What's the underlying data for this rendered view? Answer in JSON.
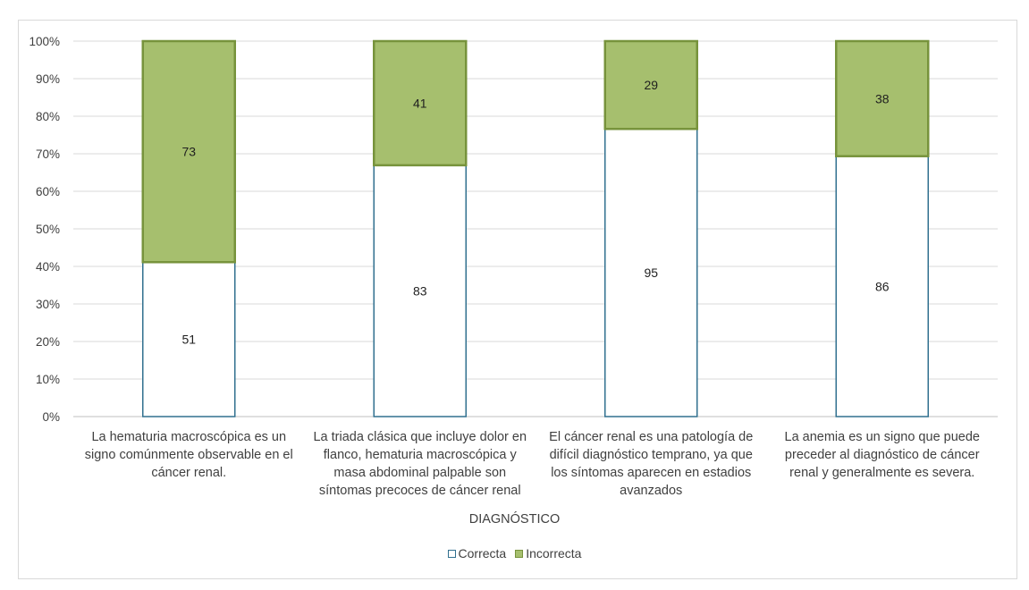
{
  "chart_data": {
    "type": "bar",
    "stacked": true,
    "normalized": true,
    "categories": [
      "La hematuria macroscópica es un signo comúnmente observable en el cáncer renal.",
      "La triada clásica que incluye dolor en flanco, hematuria macroscópica y masa abdominal palpable son síntomas precoces de cáncer renal",
      "El cáncer renal es una patología de difícil diagnóstico temprano, ya que los síntomas aparecen en estadios avanzados",
      "La anemia es un signo que puede preceder al diagnóstico de cáncer renal y generalmente es severa."
    ],
    "category_lines": [
      [
        "La hematuria macroscópica es un",
        "signo comúnmente observable en el",
        "cáncer renal."
      ],
      [
        "La triada clásica que incluye dolor en",
        "flanco, hematuria macroscópica y",
        "masa abdominal palpable son",
        "síntomas precoces de cáncer renal"
      ],
      [
        "El cáncer renal es una patología de",
        "difícil diagnóstico temprano, ya que",
        "los síntomas aparecen en estadios",
        "avanzados"
      ],
      [
        "La anemia es un signo que puede",
        "preceder al diagnóstico de cáncer",
        "renal y generalmente es severa."
      ]
    ],
    "series": [
      {
        "name": "Correcta",
        "values": [
          51,
          83,
          95,
          86
        ],
        "fill": "#ffffff",
        "stroke": "#31708f"
      },
      {
        "name": "Incorrecta",
        "values": [
          73,
          41,
          29,
          38
        ],
        "fill": "#a6bf6e",
        "stroke": "#77933c"
      }
    ],
    "xlabel": "DIAGNÓSTICO",
    "ylabel": "",
    "ylim": [
      0,
      100
    ],
    "yticks": [
      "0%",
      "10%",
      "20%",
      "30%",
      "40%",
      "50%",
      "60%",
      "70%",
      "80%",
      "90%",
      "100%"
    ],
    "grid": true,
    "legend_position": "bottom"
  }
}
